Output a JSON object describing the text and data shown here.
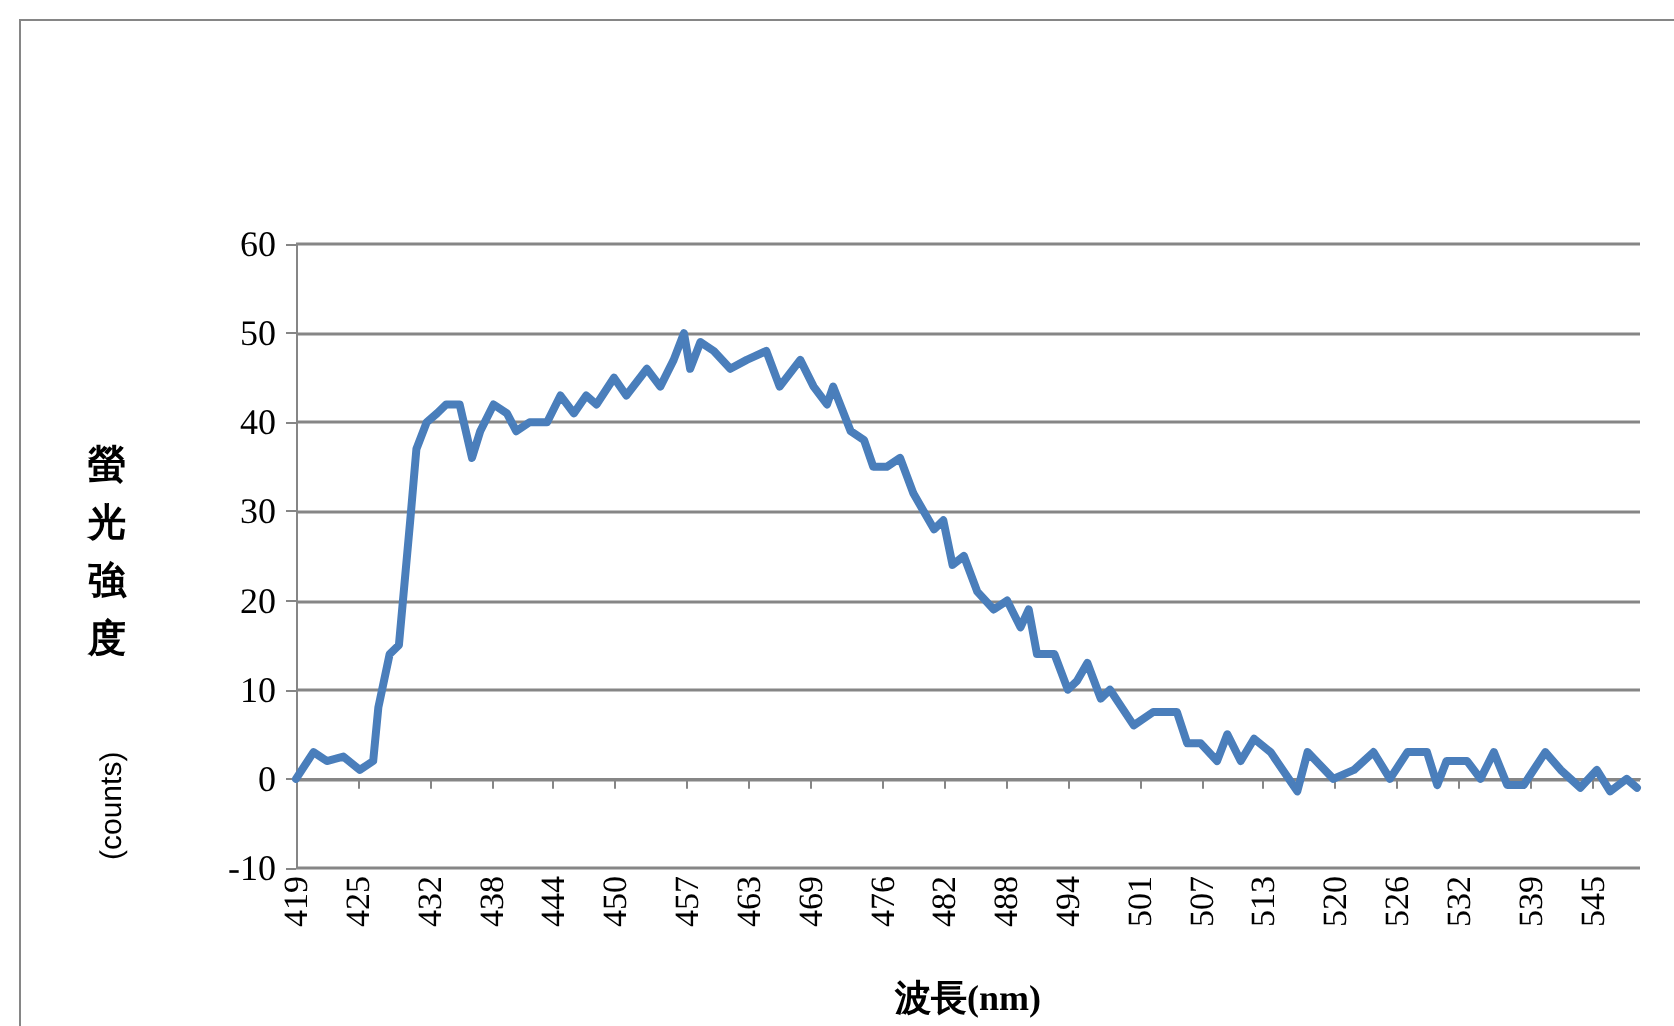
{
  "chart_data": {
    "type": "line",
    "xlabel": "波長(nm)",
    "ylabel": "螢光強度(counts)",
    "x": [
      419,
      420.7,
      422.0,
      423.6,
      425.2,
      426.5,
      427.0,
      428.1,
      429.0,
      430.1,
      430.7,
      431.7,
      432.7,
      433.6,
      434.9,
      436.1,
      436.9,
      438.2,
      439.5,
      440.4,
      441.7,
      443.4,
      444.7,
      446.0,
      447.2,
      448.2,
      449.9,
      451.1,
      453.1,
      454.4,
      455.7,
      456.7,
      457.3,
      458.3,
      459.6,
      461.2,
      462.8,
      464.7,
      466.0,
      468.0,
      469.3,
      470.6,
      471.2,
      472.9,
      474.2,
      475.1,
      476.4,
      477.7,
      479.0,
      481.0,
      481.9,
      482.8,
      483.9,
      485.2,
      486.8,
      488.1,
      489.4,
      490.2,
      491.0,
      492.7,
      494.0,
      494.9,
      495.9,
      497.2,
      498.1,
      500.4,
      502.3,
      504.6,
      505.6,
      506.9,
      508.5,
      509.5,
      510.8,
      512.1,
      513.7,
      516.3,
      517.3,
      519.8,
      521.8,
      523.7,
      525.3,
      527.0,
      528.9,
      529.9,
      530.8,
      532.8,
      534.1,
      535.4,
      536.7,
      538.3,
      540.4,
      541.9,
      543.8,
      545.4,
      546.7,
      548.3,
      549.3
    ],
    "series": [
      {
        "color": "#4a7ebb",
        "values": [
          0,
          3,
          2,
          2.5,
          1,
          2,
          8,
          14,
          15,
          29,
          37,
          40,
          41,
          42,
          42,
          36,
          39,
          42,
          41,
          39,
          40,
          40,
          43,
          41,
          43,
          42,
          45,
          43,
          46,
          44,
          47,
          50,
          46,
          49,
          48,
          46,
          47,
          48,
          44,
          47,
          44,
          42,
          44,
          39,
          38,
          35,
          35,
          36,
          32,
          28,
          29,
          24,
          25,
          21,
          19,
          20,
          17,
          19,
          14,
          14,
          10,
          11,
          13,
          9,
          10,
          6,
          7.5,
          7.5,
          4,
          4,
          2,
          5,
          2,
          4.5,
          3,
          -1.4,
          3,
          0,
          1,
          3,
          0,
          3,
          3,
          -0.7,
          2,
          2,
          0,
          3,
          -0.7,
          -0.7,
          3,
          1,
          -1,
          1,
          -1.4,
          0,
          -1
        ]
      }
    ],
    "xlim": [
      419,
      549.6
    ],
    "xticks": [
      419,
      425,
      432,
      438,
      444,
      450,
      457,
      463,
      469,
      476,
      482,
      488,
      494,
      501,
      507,
      513,
      520,
      526,
      532,
      539,
      545
    ],
    "ylim": [
      -10,
      60
    ],
    "yticks": [
      -10,
      0,
      10,
      20,
      30,
      40,
      50,
      60
    ],
    "grid": "y",
    "marker": "none",
    "line_style": "solid"
  }
}
